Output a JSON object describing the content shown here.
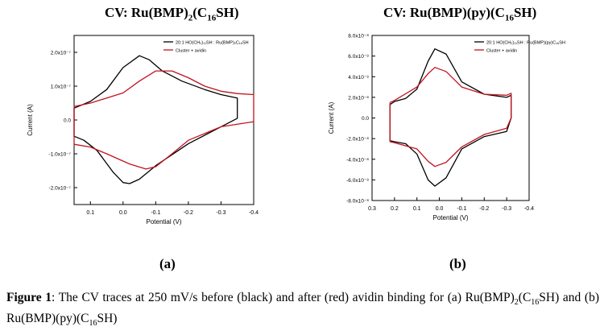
{
  "titles": {
    "a": {
      "prefix": "CV: Ru(BMP)",
      "sub1": "2",
      "mid": "(C",
      "sub2": "16",
      "suffix": "SH)"
    },
    "b": {
      "prefix": "CV: Ru(BMP)(py)(C",
      "sub1": "16",
      "suffix": "SH)"
    }
  },
  "panel_labels": {
    "a": "(a)",
    "b": "(b)"
  },
  "caption": {
    "figure_label": "Figure 1",
    "text_1": ": The CV traces at 250 mV/s before (black) and after (red) avidin binding for (a) Ru(BMP)",
    "sub_1": "2",
    "text_2": "(C",
    "sub_2": "16",
    "text_3": "SH) and (b) Ru(BMP)(py)(C",
    "sub_3": "16",
    "text_4": "SH)"
  },
  "colors": {
    "black_trace": "#000000",
    "red_trace": "#c0141e"
  },
  "chart_data": [
    {
      "type": "line",
      "panel": "a",
      "xlabel": "Potential (V)",
      "ylabel": "Current (A)",
      "xlim": [
        0.15,
        -0.4
      ],
      "ylim": [
        -2.5e-07,
        2.5e-07
      ],
      "x_ticks": [
        0.1,
        0.0,
        -0.1,
        -0.2,
        -0.3,
        -0.4
      ],
      "x_tick_labels": [
        "0.1",
        "0.0",
        "-0.1",
        "-0.2",
        "-0.3",
        "-0.4"
      ],
      "y_ticks": [
        2e-07,
        1e-07,
        0,
        -1e-07,
        -2e-07
      ],
      "y_tick_labels": [
        "2.0x10⁻⁷",
        "1.0x10⁻⁷",
        "0.0",
        "-1.0x10⁻⁷",
        "-2.0x10⁻⁷"
      ],
      "legend_position": "top-right",
      "series": [
        {
          "name": "20:1 HO(CH₂)₁₁SH : Ru(BMP)₂C₁₆SH",
          "color": "#000000",
          "x": [
            0.15,
            0.1,
            0.05,
            0.0,
            -0.05,
            -0.08,
            -0.12,
            -0.18,
            -0.25,
            -0.3,
            -0.35,
            -0.35,
            -0.3,
            -0.2,
            -0.1,
            -0.05,
            -0.02,
            0.0,
            0.03,
            0.08,
            0.12,
            0.15
          ],
          "y": [
            3.5e-08,
            5.5e-08,
            9e-08,
            1.55e-07,
            1.9e-07,
            1.78e-07,
            1.45e-07,
            1.15e-07,
            9e-08,
            7.5e-08,
            6.5e-08,
            5e-09,
            -2e-08,
            -7e-08,
            -1.35e-07,
            -1.75e-07,
            -1.88e-07,
            -1.85e-07,
            -1.55e-07,
            -9e-08,
            -6e-08,
            -4.8e-08
          ]
        },
        {
          "name": "Cluster + avidin",
          "color": "#c0141e",
          "x": [
            0.15,
            0.1,
            0.0,
            -0.05,
            -0.1,
            -0.15,
            -0.2,
            -0.25,
            -0.3,
            -0.35,
            -0.4,
            -0.4,
            -0.3,
            -0.2,
            -0.15,
            -0.1,
            -0.07,
            -0.02,
            0.05,
            0.1,
            0.15
          ],
          "y": [
            4e-08,
            5e-08,
            8e-08,
            1.15e-07,
            1.45e-07,
            1.45e-07,
            1.25e-07,
            1e-07,
            8.5e-08,
            7.8e-08,
            7.5e-08,
            -5e-09,
            -2e-08,
            -6e-08,
            -1e-07,
            -1.38e-07,
            -1.45e-07,
            -1.3e-07,
            -1e-07,
            -8e-08,
            -7.2e-08
          ]
        }
      ]
    },
    {
      "type": "line",
      "panel": "b",
      "xlabel": "Potential (V)",
      "ylabel": "Current (A)",
      "xlim": [
        0.3,
        -0.4
      ],
      "ylim": [
        -8e-08,
        8e-08
      ],
      "x_ticks": [
        0.3,
        0.2,
        0.1,
        0.0,
        -0.1,
        -0.2,
        -0.3,
        -0.4
      ],
      "x_tick_labels": [
        "0.3",
        "0.2",
        "0.1",
        "0.0",
        "-0.1",
        "-0.2",
        "-0.3",
        "-0.4"
      ],
      "y_ticks": [
        8e-08,
        6e-08,
        4e-08,
        2e-08,
        0,
        -2e-08,
        -4e-08,
        -6e-08,
        -8e-08
      ],
      "y_tick_labels": [
        "8.0x10⁻⁸",
        "6.0x10⁻⁸",
        "4.0x10⁻⁸",
        "2.0x10⁻⁸",
        "0.0",
        "-2.0x10⁻⁸",
        "-4.0x10⁻⁸",
        "-6.0x10⁻⁸",
        "-8.0x10⁻⁸"
      ],
      "legend_position": "top-right",
      "series": [
        {
          "name": "20:1 HO(CH₂)₁₁SH : Ru(BMP)(py)C₁₆SH",
          "color": "#000000",
          "x": [
            0.22,
            0.2,
            0.15,
            0.1,
            0.05,
            0.02,
            -0.03,
            -0.1,
            -0.2,
            -0.3,
            -0.32,
            -0.32,
            -0.3,
            -0.2,
            -0.1,
            -0.03,
            0.02,
            0.05,
            0.1,
            0.15,
            0.2,
            0.22
          ],
          "y": [
            1.3e-08,
            1.6e-08,
            1.9e-08,
            2.8e-08,
            5.5e-08,
            6.7e-08,
            6.2e-08,
            3.5e-08,
            2.3e-08,
            2e-08,
            2.2e-08,
            0,
            -1.3e-08,
            -1.8e-08,
            -3e-08,
            -5.8e-08,
            -6.6e-08,
            -6e-08,
            -3.5e-08,
            -2.5e-08,
            -2.3e-08,
            -2.2e-08
          ]
        },
        {
          "name": "Cluster + avidin",
          "color": "#c0141e",
          "x": [
            0.22,
            0.2,
            0.1,
            0.05,
            0.02,
            -0.03,
            -0.1,
            -0.2,
            -0.3,
            -0.32,
            -0.32,
            -0.3,
            -0.2,
            -0.1,
            -0.03,
            0.02,
            0.05,
            0.1,
            0.2,
            0.22
          ],
          "y": [
            1.5e-08,
            1.7e-08,
            3e-08,
            4.3e-08,
            4.9e-08,
            4.5e-08,
            3e-08,
            2.3e-08,
            2.2e-08,
            2.4e-08,
            0,
            -1e-08,
            -1.6e-08,
            -2.8e-08,
            -4.3e-08,
            -4.7e-08,
            -4.2e-08,
            -3e-08,
            -2.4e-08,
            -2.3e-08
          ]
        }
      ]
    }
  ]
}
